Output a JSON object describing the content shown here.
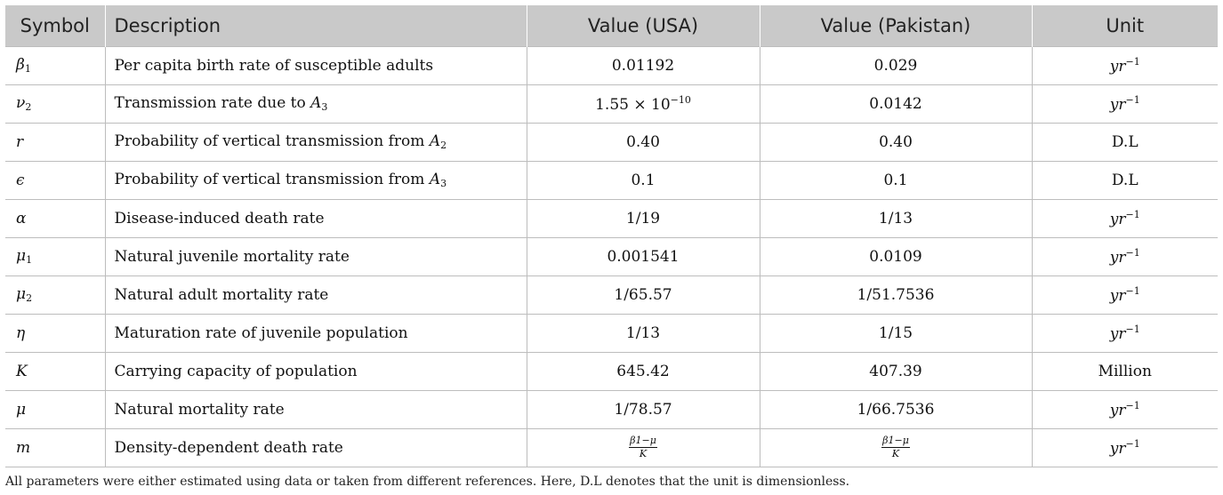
{
  "table": {
    "headers": [
      "Symbol",
      "Description",
      "Value (USA)",
      "Value (Pakistan)",
      "Unit"
    ],
    "rows": [
      {
        "symbol": "β",
        "symbol_sub": "1",
        "description": "Per capita birth rate of susceptible adults",
        "usa": "0.01192",
        "pakistan": "0.029",
        "unit": "yr",
        "unit_sup": "−1"
      },
      {
        "symbol": "ν",
        "symbol_sub": "2",
        "description": "Transmission rate due to ",
        "desc_var": "A",
        "desc_sub": "3",
        "usa_base": "1.55 × 10",
        "usa_sup": "−10",
        "pakistan": "0.0142",
        "unit": "yr",
        "unit_sup": "−1"
      },
      {
        "symbol": "r",
        "description": "Probability of vertical transmission from ",
        "desc_var": "A",
        "desc_sub": "2",
        "usa": "0.40",
        "pakistan": "0.40",
        "unit": "D.L"
      },
      {
        "symbol": "ϵ",
        "description": "Probability of vertical transmission from ",
        "desc_var": "A",
        "desc_sub": "3",
        "usa": "0.1",
        "pakistan": "0.1",
        "unit": "D.L"
      },
      {
        "symbol": "α",
        "description": "Disease-induced death rate",
        "usa": "1/19",
        "pakistan": "1/13",
        "unit": "yr",
        "unit_sup": "−1"
      },
      {
        "symbol": "μ",
        "symbol_sub": "1",
        "description": "Natural juvenile mortality rate",
        "usa": "0.001541",
        "pakistan": "0.0109",
        "unit": "yr",
        "unit_sup": "−1"
      },
      {
        "symbol": "μ",
        "symbol_sub": "2",
        "description": "Natural adult mortality rate",
        "usa": "1/65.57",
        "pakistan": "1/51.7536",
        "unit": "yr",
        "unit_sup": "−1"
      },
      {
        "symbol": "η",
        "description": "Maturation rate of juvenile population",
        "usa": "1/13",
        "pakistan": "1/15",
        "unit": "yr",
        "unit_sup": "−1"
      },
      {
        "symbol": "K",
        "description": "Carrying capacity of population",
        "usa": "645.42",
        "pakistan": "407.39",
        "unit": "Million"
      },
      {
        "symbol": "μ",
        "description": "Natural mortality rate",
        "usa": "1/78.57",
        "pakistan": "1/66.7536",
        "unit": "yr",
        "unit_sup": "−1"
      },
      {
        "symbol": "m",
        "description": "Density-dependent death rate",
        "frac_num": "β1−μ",
        "frac_den": "K",
        "unit": "yr",
        "unit_sup": "−1"
      }
    ]
  },
  "footnote": "All parameters were either estimated using data or taken from different references. Here, D.L denotes that the unit is dimensionless.",
  "colors": {
    "header_bg": "#c9c9c9",
    "rule": "#bdbdbd"
  }
}
